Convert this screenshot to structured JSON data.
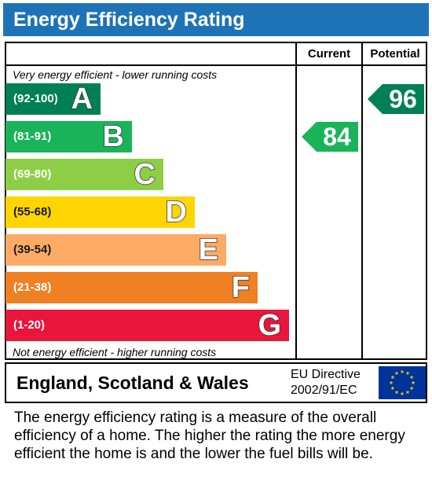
{
  "header": {
    "title": "Energy Efficiency Rating",
    "color": "#1e73b7"
  },
  "columns": {
    "current": "Current",
    "potential": "Potential"
  },
  "notes": {
    "top": "Very energy efficient - lower running costs",
    "bottom": "Not energy efficient - higher running costs"
  },
  "chart_data": {
    "type": "bar",
    "title": "Energy Efficiency Rating",
    "bands": [
      {
        "letter": "A",
        "range": "(92-100)",
        "min": 92,
        "max": 100,
        "color": "#008054"
      },
      {
        "letter": "B",
        "range": "(81-91)",
        "min": 81,
        "max": 91,
        "color": "#19b459"
      },
      {
        "letter": "C",
        "range": "(69-80)",
        "min": 69,
        "max": 80,
        "color": "#8dce46"
      },
      {
        "letter": "D",
        "range": "(55-68)",
        "min": 55,
        "max": 68,
        "color": "#ffd500"
      },
      {
        "letter": "E",
        "range": "(39-54)",
        "min": 39,
        "max": 54,
        "color": "#fcaa65"
      },
      {
        "letter": "F",
        "range": "(21-38)",
        "min": 21,
        "max": 38,
        "color": "#ef8023"
      },
      {
        "letter": "G",
        "range": "(1-20)",
        "min": 1,
        "max": 20,
        "color": "#e9153b"
      }
    ],
    "current": {
      "value": 84,
      "label": "84",
      "band": "B",
      "color": "#19b459"
    },
    "potential": {
      "value": 96,
      "label": "96",
      "band": "A",
      "color": "#008054"
    }
  },
  "footer": {
    "region": "England, Scotland & Wales",
    "directive_line1": "EU Directive",
    "directive_line2": "2002/91/EC",
    "flag_icon": "eu-flag-icon",
    "flag_color": "#003399",
    "star_color": "#ffcc00"
  },
  "description": "The energy efficiency rating is a measure of the overall efficiency of a home. The higher the rating the more energy efficient the home is and the lower the fuel bills will be."
}
